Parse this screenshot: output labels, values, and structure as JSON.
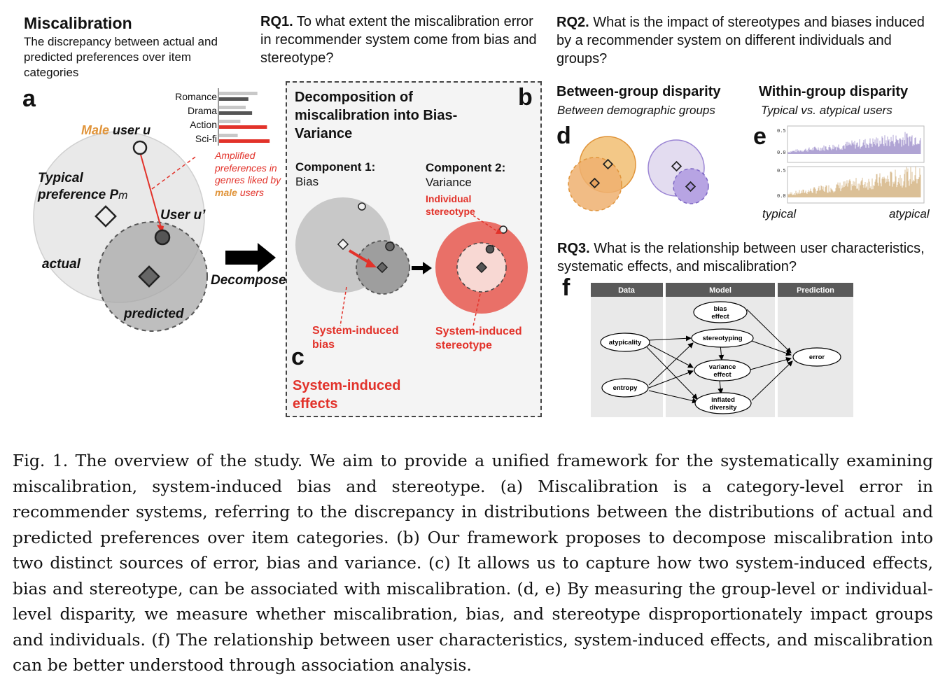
{
  "panel_a": {
    "title": "Miscalibration",
    "subtitle": "The discrepancy between actual and predicted preferences over item categories",
    "letter": "a",
    "genres": [
      "Romance",
      "Drama",
      "Action",
      "Sci-fi"
    ],
    "male_word": "Male",
    "user_u": "user u",
    "typical_line1": "Typical",
    "typical_line2": "preference P",
    "typical_sub": "m",
    "user_u_prime": "User u’",
    "actual": "actual",
    "predicted": "predicted",
    "amplified_line1": "Amplified",
    "amplified_line2": "preferences in",
    "amplified_line3": "genres liked by",
    "amplified_male": "male",
    "amplified_users": "users",
    "decompose": "Decompose"
  },
  "rq1": {
    "prefix": "RQ1.",
    "text": "To what extent the miscalibration error in recommender system come from bias and stereotype?"
  },
  "panel_bc": {
    "letter_b": "b",
    "letter_c": "c",
    "title": "Decomposition of miscalibration into Bias-Variance",
    "comp1_line1": "Component 1:",
    "comp1_line2": "Bias",
    "comp2_line1": "Component 2:",
    "comp2_line2": "Variance",
    "indiv_line1": "Individual",
    "indiv_line2": "stereotype",
    "sib_line1": "System-induced",
    "sib_line2": "bias",
    "sis_line1": "System-induced",
    "sis_line2": "stereotype",
    "effects_line1": "System-induced",
    "effects_line2": "effects"
  },
  "rq2": {
    "prefix": "RQ2.",
    "text": "What is the impact of stereotypes and biases induced by a recommender system on different individuals and groups?",
    "between_title": "Between-group disparity",
    "between_sub": "Between demographic groups",
    "within_title": "Within-group disparity",
    "within_sub": "Typical vs. atypical users",
    "letter_d": "d",
    "letter_e": "e",
    "tick_top_hi": "0.5",
    "tick_top_lo": "0.0",
    "tick_bot_hi": "0.5",
    "tick_bot_lo": "0.0",
    "typical": "typical",
    "atypical": "atypical"
  },
  "rq3": {
    "prefix": "RQ3.",
    "text": "What is the relationship between user characteristics, systematic effects, and miscalibration?",
    "letter_f": "f",
    "col_data": "Data",
    "col_model": "Model",
    "col_prediction": "Prediction",
    "node_atypicality": "atypicality",
    "node_entropy": "entropy",
    "node_bias1": "bias",
    "node_bias2": "effect",
    "node_stereotyping": "stereotyping",
    "node_variance1": "variance",
    "node_variance2": "effect",
    "node_inflated1": "inflated",
    "node_inflated2": "diversity",
    "node_error": "error"
  },
  "caption": "Fig. 1.   The overview of the study. We aim to provide a unified framework for the systematically examining miscalibration, system-induced bias and stereotype. (a) Miscalibration is a category-level error in recommender systems, referring to the discrepancy in distributions between the distributions of actual and predicted preferences over item categories. (b) Our framework proposes to decompose miscalibration into two distinct sources of error, bias and variance. (c) It allows us to capture how two system-induced effects, bias and stereotype, can be associated with miscalibration. (d, e) By measuring the group-level or individual-level disparity, we measure whether miscalibration, bias, and stereotype disproportionately impact groups and individuals. (f) The relationship between user characteristics, system-induced effects, and miscalibration can be better understood through association analysis.",
  "colors": {
    "red": "#e2322a",
    "orange": "#e0943a",
    "purple": "#9b85d4",
    "grey_circle": "#e6e6e6",
    "dark_circle": "#9a9a9a"
  },
  "genre_chart": {
    "actual": [
      0.72,
      0.5,
      0.4,
      0.35
    ],
    "predicted": [
      0.55,
      0.62,
      0.9,
      0.95
    ]
  }
}
